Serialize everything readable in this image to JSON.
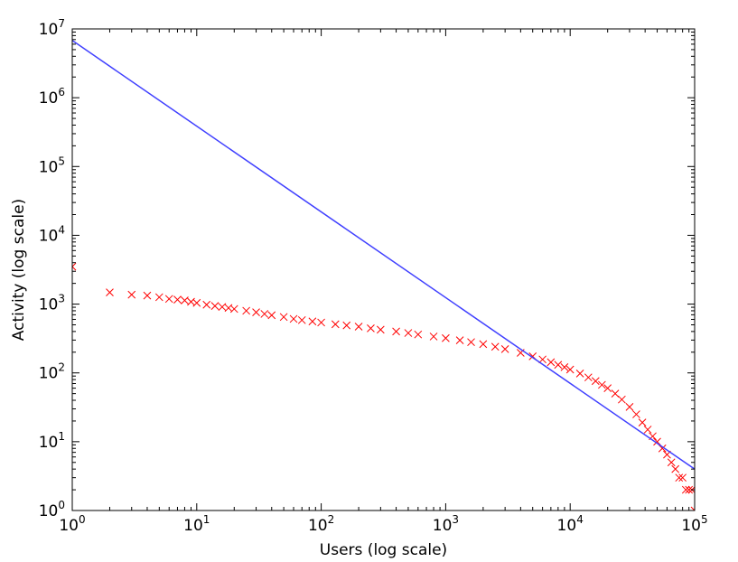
{
  "chart_data": {
    "type": "scatter",
    "title": "",
    "xlabel": "Users (log scale)",
    "ylabel": "Activity (log scale)",
    "xscale": "log",
    "yscale": "log",
    "xlim": [
      1,
      100000
    ],
    "ylim": [
      1,
      10000000
    ],
    "grid": false,
    "legend": "none",
    "x_tick_labels": [
      {
        "base": "10",
        "exp": "0"
      },
      {
        "base": "10",
        "exp": "1"
      },
      {
        "base": "10",
        "exp": "2"
      },
      {
        "base": "10",
        "exp": "3"
      },
      {
        "base": "10",
        "exp": "4"
      },
      {
        "base": "10",
        "exp": "5"
      }
    ],
    "y_tick_labels": [
      {
        "base": "10",
        "exp": "0"
      },
      {
        "base": "10",
        "exp": "1"
      },
      {
        "base": "10",
        "exp": "2"
      },
      {
        "base": "10",
        "exp": "3"
      },
      {
        "base": "10",
        "exp": "4"
      },
      {
        "base": "10",
        "exp": "5"
      },
      {
        "base": "10",
        "exp": "6"
      },
      {
        "base": "10",
        "exp": "7"
      }
    ],
    "series": [
      {
        "kind": "scatter",
        "marker": "x",
        "color": "#ff0000",
        "points": [
          [
            1,
            3500
          ],
          [
            2,
            1480
          ],
          [
            3,
            1370
          ],
          [
            4,
            1330
          ],
          [
            5,
            1260
          ],
          [
            6,
            1190
          ],
          [
            7,
            1160
          ],
          [
            8,
            1130
          ],
          [
            9,
            1080
          ],
          [
            10,
            1040
          ],
          [
            12,
            980
          ],
          [
            14,
            940
          ],
          [
            16,
            910
          ],
          [
            18,
            880
          ],
          [
            20,
            850
          ],
          [
            25,
            800
          ],
          [
            30,
            760
          ],
          [
            35,
            720
          ],
          [
            40,
            690
          ],
          [
            50,
            650
          ],
          [
            60,
            610
          ],
          [
            70,
            585
          ],
          [
            85,
            560
          ],
          [
            100,
            540
          ],
          [
            130,
            510
          ],
          [
            160,
            490
          ],
          [
            200,
            470
          ],
          [
            250,
            445
          ],
          [
            300,
            425
          ],
          [
            400,
            400
          ],
          [
            500,
            380
          ],
          [
            600,
            362
          ],
          [
            800,
            338
          ],
          [
            1000,
            320
          ],
          [
            1300,
            298
          ],
          [
            1600,
            280
          ],
          [
            2000,
            262
          ],
          [
            2500,
            240
          ],
          [
            3000,
            222
          ],
          [
            4000,
            196
          ],
          [
            5000,
            174
          ],
          [
            6000,
            157
          ],
          [
            7000,
            143
          ],
          [
            8000,
            131
          ],
          [
            9000,
            121
          ],
          [
            10000,
            112
          ],
          [
            12000,
            98
          ],
          [
            14000,
            86
          ],
          [
            16000,
            76
          ],
          [
            18000,
            67
          ],
          [
            20000,
            60
          ],
          [
            23000,
            50
          ],
          [
            26000,
            41
          ],
          [
            30000,
            32
          ],
          [
            34000,
            25
          ],
          [
            38000,
            19
          ],
          [
            42000,
            15
          ],
          [
            46000,
            12
          ],
          [
            50000,
            10
          ],
          [
            55000,
            8
          ],
          [
            60000,
            6.5
          ],
          [
            65000,
            5
          ],
          [
            70000,
            4
          ],
          [
            75000,
            3
          ],
          [
            80000,
            3
          ],
          [
            85000,
            2
          ],
          [
            90000,
            2
          ],
          [
            95000,
            2
          ],
          [
            100000,
            1
          ]
        ]
      },
      {
        "kind": "line",
        "color": "#4040ff",
        "points": [
          [
            1,
            6800000
          ],
          [
            100000,
            4
          ]
        ]
      }
    ]
  }
}
